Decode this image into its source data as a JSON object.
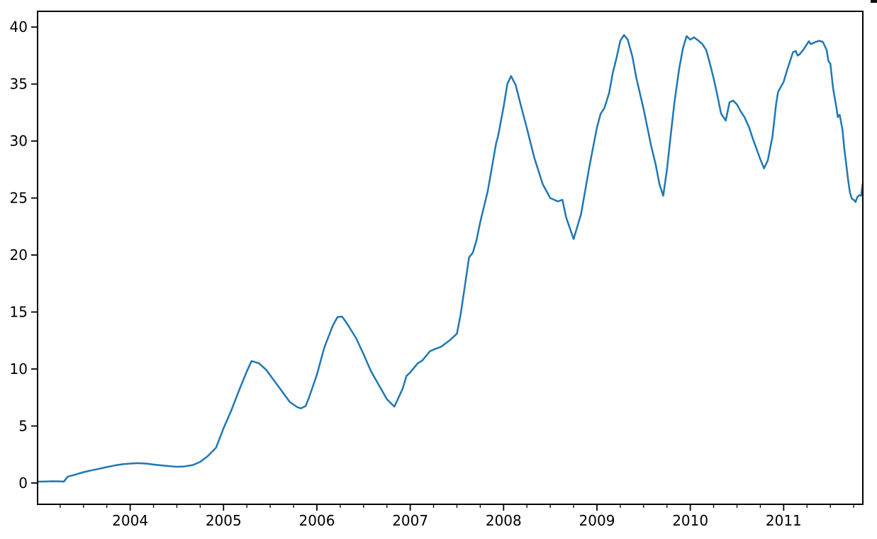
{
  "figure": {
    "background": "#ffffff",
    "corner_artifact_color": "#111111"
  },
  "chart_data": {
    "type": "line",
    "title": "",
    "xlabel": "",
    "ylabel": "",
    "grid": false,
    "legend": false,
    "axis_color": "#000000",
    "tick_label_color": "#000000",
    "xlim": [
      2003.008,
      2011.848
    ],
    "ylim": [
      -1.87,
      41.38
    ],
    "x_major_ticks": [
      2004,
      2005,
      2006,
      2007,
      2008,
      2009,
      2010,
      2011
    ],
    "x_major_tick_labels": [
      "2004",
      "2005",
      "2006",
      "2007",
      "2008",
      "2009",
      "2010",
      "2011"
    ],
    "x_minor_tick_interval": 0.25,
    "y_major_ticks": [
      0,
      5,
      10,
      15,
      20,
      25,
      30,
      35,
      40
    ],
    "y_major_tick_labels": [
      "0",
      "5",
      "10",
      "15",
      "20",
      "25",
      "30",
      "35",
      "40"
    ],
    "series": [
      {
        "name": "series-0",
        "color": "#1f77b4",
        "line_width": 2.5,
        "points": [
          [
            2003.01,
            0.12
          ],
          [
            2003.08,
            0.13
          ],
          [
            2003.17,
            0.15
          ],
          [
            2003.25,
            0.14
          ],
          [
            2003.29,
            0.12
          ],
          [
            2003.33,
            0.55
          ],
          [
            2003.42,
            0.75
          ],
          [
            2003.5,
            0.95
          ],
          [
            2003.58,
            1.1
          ],
          [
            2003.67,
            1.25
          ],
          [
            2003.75,
            1.4
          ],
          [
            2003.83,
            1.53
          ],
          [
            2003.92,
            1.65
          ],
          [
            2004.0,
            1.7
          ],
          [
            2004.08,
            1.74
          ],
          [
            2004.17,
            1.7
          ],
          [
            2004.25,
            1.62
          ],
          [
            2004.33,
            1.55
          ],
          [
            2004.42,
            1.48
          ],
          [
            2004.5,
            1.42
          ],
          [
            2004.58,
            1.45
          ],
          [
            2004.67,
            1.57
          ],
          [
            2004.75,
            1.85
          ],
          [
            2004.83,
            2.35
          ],
          [
            2004.92,
            3.1
          ],
          [
            2005.0,
            4.8
          ],
          [
            2005.08,
            6.3
          ],
          [
            2005.17,
            8.2
          ],
          [
            2005.25,
            9.8
          ],
          [
            2005.3,
            10.7
          ],
          [
            2005.38,
            10.5
          ],
          [
            2005.46,
            9.9
          ],
          [
            2005.54,
            9.0
          ],
          [
            2005.63,
            8.0
          ],
          [
            2005.71,
            7.1
          ],
          [
            2005.79,
            6.65
          ],
          [
            2005.83,
            6.55
          ],
          [
            2005.88,
            6.75
          ],
          [
            2005.92,
            7.6
          ],
          [
            2006.0,
            9.5
          ],
          [
            2006.08,
            11.9
          ],
          [
            2006.17,
            13.8
          ],
          [
            2006.22,
            14.55
          ],
          [
            2006.27,
            14.6
          ],
          [
            2006.33,
            13.9
          ],
          [
            2006.42,
            12.7
          ],
          [
            2006.5,
            11.3
          ],
          [
            2006.58,
            9.8
          ],
          [
            2006.67,
            8.5
          ],
          [
            2006.75,
            7.35
          ],
          [
            2006.83,
            6.7
          ],
          [
            2006.92,
            8.3
          ],
          [
            2006.96,
            9.4
          ],
          [
            2007.0,
            9.7
          ],
          [
            2007.08,
            10.5
          ],
          [
            2007.13,
            10.75
          ],
          [
            2007.21,
            11.55
          ],
          [
            2007.25,
            11.7
          ],
          [
            2007.33,
            11.95
          ],
          [
            2007.42,
            12.5
          ],
          [
            2007.46,
            12.8
          ],
          [
            2007.5,
            13.1
          ],
          [
            2007.54,
            14.8
          ],
          [
            2007.58,
            17.0
          ],
          [
            2007.63,
            19.8
          ],
          [
            2007.67,
            20.2
          ],
          [
            2007.71,
            21.3
          ],
          [
            2007.75,
            22.9
          ],
          [
            2007.83,
            25.6
          ],
          [
            2007.92,
            29.8
          ],
          [
            2007.94,
            30.4
          ],
          [
            2008.0,
            33.0
          ],
          [
            2008.04,
            35.0
          ],
          [
            2008.08,
            35.7
          ],
          [
            2008.13,
            34.9
          ],
          [
            2008.17,
            33.6
          ],
          [
            2008.25,
            31.1
          ],
          [
            2008.33,
            28.5
          ],
          [
            2008.42,
            26.2
          ],
          [
            2008.5,
            25.0
          ],
          [
            2008.58,
            24.7
          ],
          [
            2008.63,
            24.85
          ],
          [
            2008.67,
            23.3
          ],
          [
            2008.75,
            21.4
          ],
          [
            2008.83,
            23.6
          ],
          [
            2008.92,
            27.8
          ],
          [
            2009.0,
            31.2
          ],
          [
            2009.04,
            32.4
          ],
          [
            2009.08,
            32.9
          ],
          [
            2009.13,
            34.2
          ],
          [
            2009.17,
            36.0
          ],
          [
            2009.21,
            37.3
          ],
          [
            2009.25,
            38.8
          ],
          [
            2009.29,
            39.3
          ],
          [
            2009.33,
            38.9
          ],
          [
            2009.38,
            37.4
          ],
          [
            2009.42,
            35.6
          ],
          [
            2009.46,
            34.2
          ],
          [
            2009.5,
            32.8
          ],
          [
            2009.54,
            31.2
          ],
          [
            2009.58,
            29.6
          ],
          [
            2009.63,
            27.9
          ],
          [
            2009.67,
            26.2
          ],
          [
            2009.71,
            25.2
          ],
          [
            2009.75,
            27.5
          ],
          [
            2009.79,
            30.5
          ],
          [
            2009.83,
            33.4
          ],
          [
            2009.88,
            36.3
          ],
          [
            2009.92,
            38.1
          ],
          [
            2009.96,
            39.2
          ],
          [
            2010.0,
            38.9
          ],
          [
            2010.04,
            39.1
          ],
          [
            2010.08,
            38.85
          ],
          [
            2010.13,
            38.5
          ],
          [
            2010.17,
            38.0
          ],
          [
            2010.21,
            36.8
          ],
          [
            2010.25,
            35.5
          ],
          [
            2010.29,
            34.0
          ],
          [
            2010.33,
            32.4
          ],
          [
            2010.38,
            31.8
          ],
          [
            2010.42,
            33.4
          ],
          [
            2010.46,
            33.55
          ],
          [
            2010.5,
            33.2
          ],
          [
            2010.54,
            32.6
          ],
          [
            2010.58,
            32.1
          ],
          [
            2010.63,
            31.2
          ],
          [
            2010.67,
            30.2
          ],
          [
            2010.71,
            29.3
          ],
          [
            2010.75,
            28.4
          ],
          [
            2010.79,
            27.6
          ],
          [
            2010.83,
            28.3
          ],
          [
            2010.88,
            30.4
          ],
          [
            2010.92,
            33.3
          ],
          [
            2010.94,
            34.3
          ],
          [
            2011.0,
            35.2
          ],
          [
            2011.04,
            36.3
          ],
          [
            2011.08,
            37.3
          ],
          [
            2011.1,
            37.8
          ],
          [
            2011.13,
            37.9
          ],
          [
            2011.15,
            37.5
          ],
          [
            2011.17,
            37.6
          ],
          [
            2011.21,
            38.0
          ],
          [
            2011.25,
            38.5
          ],
          [
            2011.27,
            38.75
          ],
          [
            2011.29,
            38.5
          ],
          [
            2011.33,
            38.65
          ],
          [
            2011.38,
            38.8
          ],
          [
            2011.42,
            38.7
          ],
          [
            2011.46,
            38.0
          ],
          [
            2011.48,
            37.0
          ],
          [
            2011.5,
            36.8
          ],
          [
            2011.53,
            34.6
          ],
          [
            2011.57,
            32.7
          ],
          [
            2011.58,
            32.1
          ],
          [
            2011.6,
            32.3
          ],
          [
            2011.63,
            31.0
          ],
          [
            2011.65,
            29.3
          ],
          [
            2011.67,
            28.0
          ],
          [
            2011.69,
            26.6
          ],
          [
            2011.71,
            25.5
          ],
          [
            2011.73,
            24.95
          ],
          [
            2011.75,
            24.85
          ],
          [
            2011.77,
            24.65
          ],
          [
            2011.79,
            25.1
          ],
          [
            2011.81,
            25.25
          ],
          [
            2011.83,
            25.2
          ],
          [
            2011.845,
            26.2
          ]
        ]
      }
    ]
  }
}
